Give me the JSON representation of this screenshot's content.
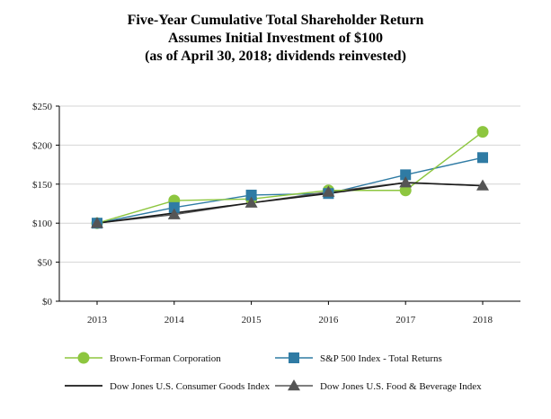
{
  "chart_data": {
    "type": "line",
    "title": [
      "Five-Year Cumulative Total Shareholder Return",
      "Assumes Initial Investment of $100",
      "(as of April 30, 2018; dividends reinvested)"
    ],
    "xlabel": "",
    "ylabel": "",
    "x": [
      "2013",
      "2014",
      "2015",
      "2016",
      "2017",
      "2018"
    ],
    "ylim": [
      0,
      250
    ],
    "yticks": [
      0,
      50,
      100,
      150,
      200,
      250
    ],
    "ytick_labels": [
      "$0",
      "$50",
      "$100",
      "$150",
      "$200",
      "$250"
    ],
    "grid": true,
    "legend_position": "bottom",
    "series": [
      {
        "name": "Brown-Forman Corporation",
        "marker": "circle",
        "color": "#8dc63f",
        "values": [
          100,
          129,
          131,
          142,
          142,
          217
        ]
      },
      {
        "name": "S&P 500 Index - Total Returns",
        "marker": "square",
        "color": "#2f7ba4",
        "values": [
          100,
          120,
          136,
          138,
          162,
          184
        ]
      },
      {
        "name": "Dow Jones U.S. Consumer Goods Index",
        "marker": "none",
        "color": "#1a1a1a",
        "values": [
          100,
          113,
          126,
          138,
          152,
          148
        ]
      },
      {
        "name": "Dow Jones U.S. Food & Beverage Index",
        "marker": "triangle",
        "color": "#555555",
        "values": [
          100,
          111,
          126,
          140,
          152,
          148
        ]
      }
    ]
  }
}
